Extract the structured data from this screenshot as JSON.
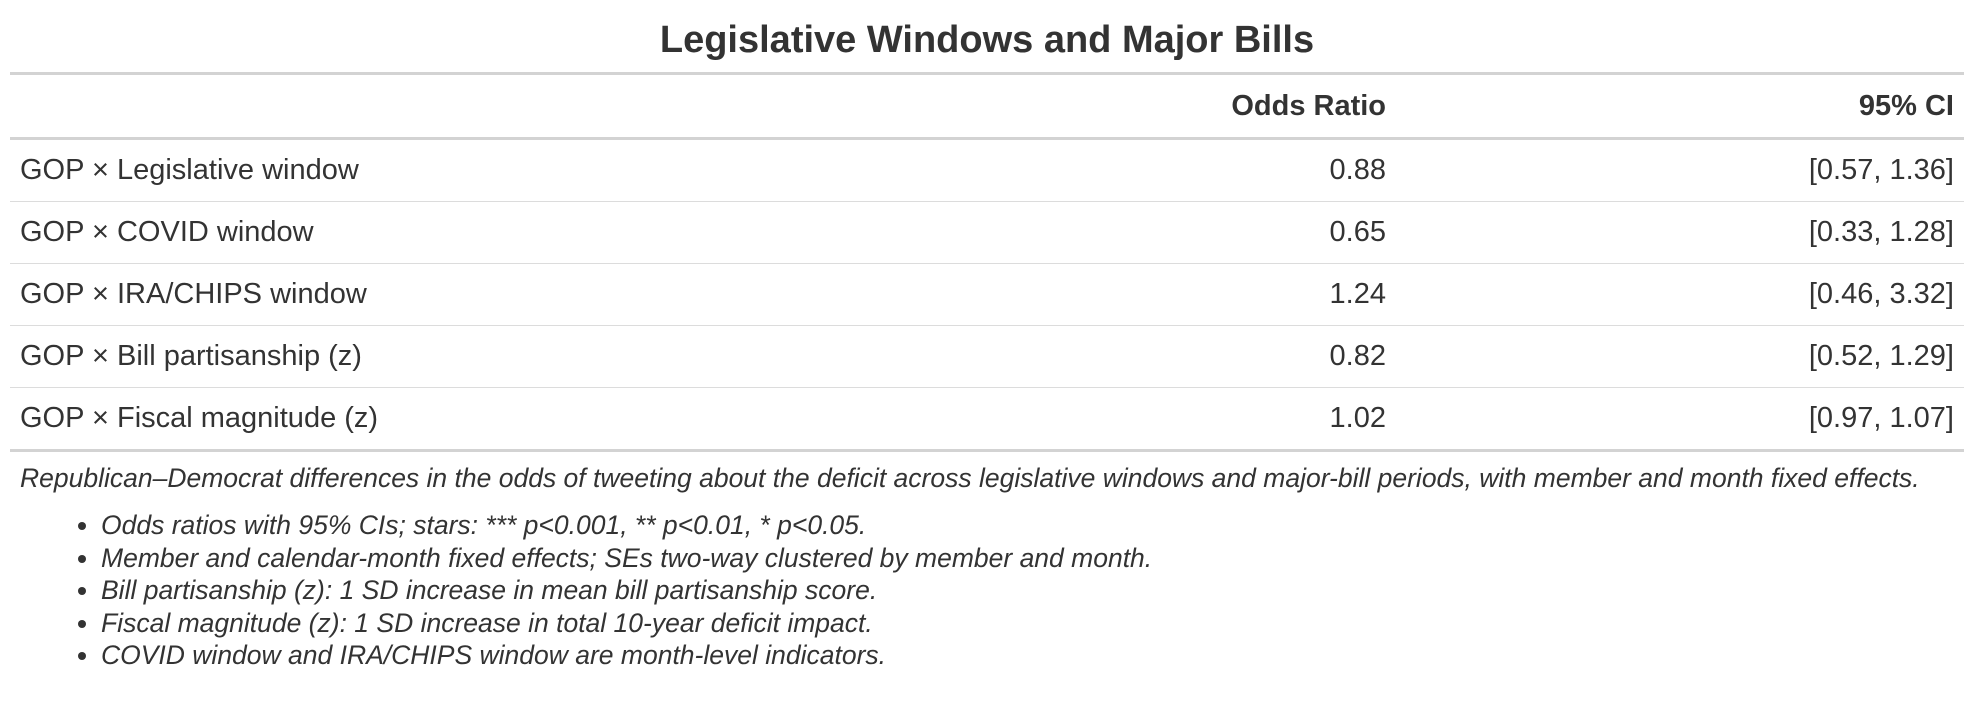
{
  "title": "Legislative Windows and Major Bills",
  "table": {
    "columns": [
      "",
      "Odds Ratio",
      "95% CI"
    ],
    "rows": [
      {
        "label": "GOP × Legislative window",
        "odds_ratio": "0.88",
        "ci": "[0.57, 1.36]"
      },
      {
        "label": "GOP × COVID window",
        "odds_ratio": "0.65",
        "ci": "[0.33, 1.28]"
      },
      {
        "label": "GOP × IRA/CHIPS window",
        "odds_ratio": "1.24",
        "ci": "[0.46, 3.32]"
      },
      {
        "label": "GOP × Bill partisanship (z)",
        "odds_ratio": "0.82",
        "ci": "[0.52, 1.29]"
      },
      {
        "label": "GOP × Fiscal magnitude (z)",
        "odds_ratio": "1.02",
        "ci": "[0.97, 1.07]"
      }
    ]
  },
  "caption": "Republican–Democrat differences in the odds of tweeting about the deficit across legislative windows and major-bill periods, with member and month fixed effects.",
  "notes": [
    "Odds ratios with 95% CIs; stars: *** p<0.001, ** p<0.01, * p<0.05.",
    "Member and calendar-month fixed effects; SEs two-way clustered by member and month.",
    "Bill partisanship (z): 1 SD increase in mean bill partisanship score.",
    "Fiscal magnitude (z): 1 SD increase in total 10-year deficit impact.",
    "COVID window and IRA/CHIPS window are month-level indicators."
  ]
}
